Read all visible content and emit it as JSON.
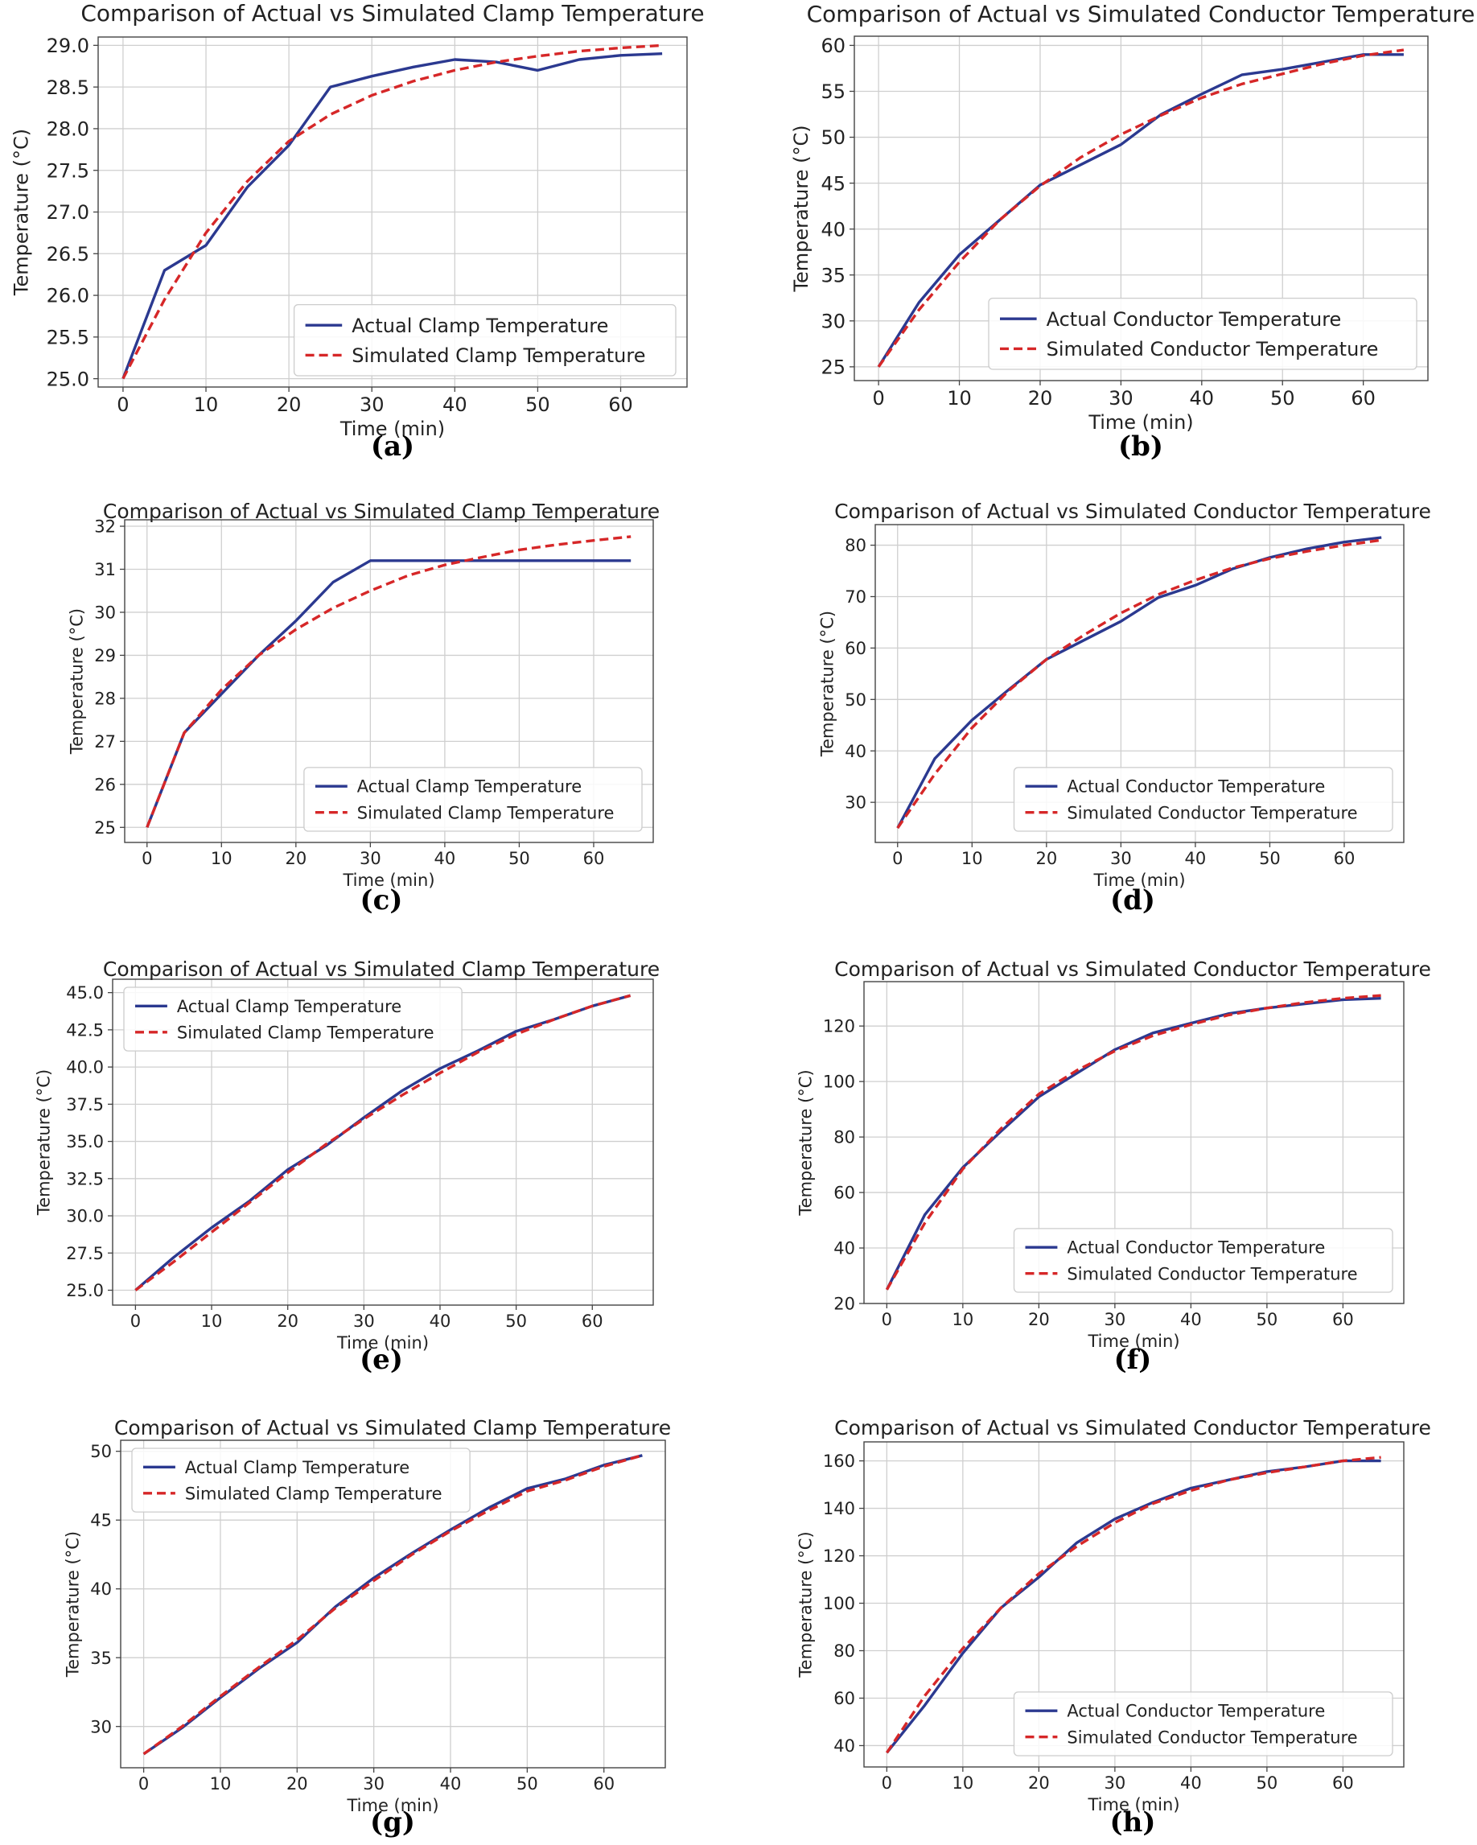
{
  "figure": {
    "captions": [
      "(a)",
      "(b)",
      "(c)",
      "(d)",
      "(e)",
      "(f)",
      "(g)",
      "(h)"
    ]
  },
  "colors": {
    "actual": "#2b3990",
    "simulated": "#d62728",
    "grid": "#cfcfcf",
    "axis": "#444444"
  },
  "chart_data": [
    {
      "type": "line",
      "title": "Comparison of Actual vs Simulated Clamp Temperature",
      "xlabel": "Time (min)",
      "ylabel": "Temperature (°C)",
      "x": [
        0,
        5,
        10,
        15,
        20,
        25,
        30,
        35,
        40,
        45,
        50,
        55,
        60,
        65
      ],
      "xlim": [
        -3,
        68
      ],
      "ylim": [
        24.9,
        29.1
      ],
      "xticks": [
        0,
        10,
        20,
        30,
        40,
        50,
        60
      ],
      "yticks": [
        25.0,
        25.5,
        26.0,
        26.5,
        27.0,
        27.5,
        28.0,
        28.5,
        29.0
      ],
      "ytick_labels": [
        "25.0",
        "25.5",
        "26.0",
        "26.5",
        "27.0",
        "27.5",
        "28.0",
        "28.5",
        "29.0"
      ],
      "legend_position": "lower-right",
      "grid": true,
      "series": [
        {
          "name": "Actual Clamp Temperature",
          "style": "solid",
          "values": [
            25.0,
            26.3,
            26.6,
            27.3,
            27.8,
            28.5,
            28.63,
            28.74,
            28.83,
            28.8,
            28.7,
            28.83,
            28.88,
            28.9
          ]
        },
        {
          "name": "Simulated Clamp Temperature",
          "style": "dashed",
          "values": [
            25.0,
            25.95,
            26.75,
            27.37,
            27.85,
            28.17,
            28.4,
            28.57,
            28.7,
            28.8,
            28.87,
            28.93,
            28.97,
            29.0
          ]
        }
      ]
    },
    {
      "type": "line",
      "title": "Comparison of Actual vs Simulated Conductor Temperature",
      "xlabel": "Time (min)",
      "ylabel": "Temperature (°C)",
      "x": [
        0,
        5,
        10,
        15,
        20,
        25,
        30,
        35,
        40,
        45,
        50,
        55,
        60,
        65
      ],
      "xlim": [
        -3,
        68
      ],
      "ylim": [
        23.5,
        61
      ],
      "xticks": [
        0,
        10,
        20,
        30,
        40,
        50,
        60
      ],
      "yticks": [
        25,
        30,
        35,
        40,
        45,
        50,
        55,
        60
      ],
      "ytick_labels": [
        "25",
        "30",
        "35",
        "40",
        "45",
        "50",
        "55",
        "60"
      ],
      "legend_position": "lower-right",
      "grid": true,
      "series": [
        {
          "name": "Actual Conductor Temperature",
          "style": "solid",
          "values": [
            25.0,
            32.0,
            37.2,
            41.0,
            44.8,
            47.0,
            49.2,
            52.5,
            54.7,
            56.8,
            57.4,
            58.2,
            59.0,
            59.0
          ]
        },
        {
          "name": "Simulated Conductor Temperature",
          "style": "dashed",
          "values": [
            25.0,
            31.2,
            36.4,
            41.0,
            44.7,
            47.8,
            50.3,
            52.4,
            54.3,
            55.8,
            56.9,
            58.0,
            58.9,
            59.5
          ]
        }
      ]
    },
    {
      "type": "line",
      "title": "Comparison of Actual vs Simulated Clamp Temperature",
      "xlabel": "Time (min)",
      "ylabel": "Temperature (°C)",
      "x": [
        0,
        5,
        10,
        15,
        20,
        25,
        30,
        35,
        40,
        45,
        50,
        55,
        60,
        65
      ],
      "xlim": [
        -3,
        68
      ],
      "ylim": [
        24.65,
        32.15
      ],
      "xticks": [
        0,
        10,
        20,
        30,
        40,
        50,
        60
      ],
      "yticks": [
        25,
        26,
        27,
        28,
        29,
        30,
        31,
        32
      ],
      "ytick_labels": [
        "25",
        "26",
        "27",
        "28",
        "29",
        "30",
        "31",
        "32"
      ],
      "legend_position": "lower-right",
      "grid": true,
      "series": [
        {
          "name": "Actual Clamp Temperature",
          "style": "solid",
          "values": [
            25.0,
            27.2,
            28.1,
            29.0,
            29.8,
            30.7,
            31.2,
            31.2,
            31.2,
            31.2,
            31.2,
            31.2,
            31.2,
            31.2
          ]
        },
        {
          "name": "Simulated Clamp Temperature",
          "style": "dashed",
          "values": [
            25.0,
            27.2,
            28.2,
            29.0,
            29.6,
            30.1,
            30.5,
            30.85,
            31.1,
            31.28,
            31.45,
            31.57,
            31.67,
            31.76
          ]
        }
      ]
    },
    {
      "type": "line",
      "title": "Comparison of Actual vs Simulated Conductor Temperature",
      "xlabel": "Time (min)",
      "ylabel": "Temperature (°C)",
      "x": [
        0,
        5,
        10,
        15,
        20,
        25,
        30,
        35,
        40,
        45,
        50,
        55,
        60,
        65
      ],
      "xlim": [
        -3,
        68
      ],
      "ylim": [
        22.2,
        84
      ],
      "xticks": [
        0,
        10,
        20,
        30,
        40,
        50,
        60
      ],
      "yticks": [
        30,
        40,
        50,
        60,
        70,
        80
      ],
      "ytick_labels": [
        "30",
        "40",
        "50",
        "60",
        "70",
        "80"
      ],
      "legend_position": "lower-right",
      "grid": true,
      "series": [
        {
          "name": "Actual Conductor Temperature",
          "style": "solid",
          "values": [
            25.0,
            38.5,
            46.0,
            52.0,
            57.8,
            61.5,
            65.2,
            69.8,
            72.2,
            75.4,
            77.6,
            79.3,
            80.6,
            81.5
          ]
        },
        {
          "name": "Simulated Conductor Temperature",
          "style": "dashed",
          "values": [
            25.0,
            35.5,
            44.5,
            51.8,
            57.8,
            62.5,
            66.8,
            70.4,
            73.2,
            75.6,
            77.4,
            78.8,
            80.0,
            81.0
          ]
        }
      ]
    },
    {
      "type": "line",
      "title": "Comparison of Actual vs Simulated Clamp Temperature",
      "xlabel": "Time (min)",
      "ylabel": "Temperature (°C)",
      "x": [
        0,
        5,
        10,
        15,
        20,
        25,
        30,
        35,
        40,
        45,
        50,
        55,
        60,
        65
      ],
      "xlim": [
        -3,
        68
      ],
      "ylim": [
        24.0,
        45.9
      ],
      "xticks": [
        0,
        10,
        20,
        30,
        40,
        50,
        60
      ],
      "yticks": [
        25.0,
        27.5,
        30.0,
        32.5,
        35.0,
        37.5,
        40.0,
        42.5,
        45.0
      ],
      "ytick_labels": [
        "25.0",
        "27.5",
        "30.0",
        "32.5",
        "35.0",
        "37.5",
        "40.0",
        "42.5",
        "45.0"
      ],
      "legend_position": "upper-left",
      "grid": true,
      "series": [
        {
          "name": "Actual Clamp Temperature",
          "style": "solid",
          "values": [
            25.0,
            27.2,
            29.2,
            31.0,
            33.1,
            34.7,
            36.6,
            38.4,
            39.9,
            41.1,
            42.4,
            43.2,
            44.1,
            44.8
          ]
        },
        {
          "name": "Simulated Clamp Temperature",
          "style": "dashed",
          "values": [
            25.0,
            26.9,
            28.9,
            30.9,
            32.9,
            34.8,
            36.5,
            38.1,
            39.6,
            41.0,
            42.2,
            43.2,
            44.1,
            44.8
          ]
        }
      ]
    },
    {
      "type": "line",
      "title": "Comparison of Actual vs Simulated Conductor Temperature",
      "xlabel": "Time (min)",
      "ylabel": "Temperature (°C)",
      "x": [
        0,
        5,
        10,
        15,
        20,
        25,
        30,
        35,
        40,
        45,
        50,
        55,
        60,
        65
      ],
      "xlim": [
        -3,
        68
      ],
      "ylim": [
        20,
        136
      ],
      "xticks": [
        0,
        10,
        20,
        30,
        40,
        50,
        60
      ],
      "yticks": [
        20,
        40,
        60,
        80,
        100,
        120
      ],
      "ytick_labels": [
        "20",
        "40",
        "60",
        "80",
        "100",
        "120"
      ],
      "legend_position": "lower-right",
      "grid": true,
      "series": [
        {
          "name": "Actual Conductor Temperature",
          "style": "solid",
          "values": [
            25.0,
            52.0,
            69.0,
            82.0,
            94.5,
            103.0,
            111.5,
            117.5,
            121.0,
            124.5,
            126.5,
            128.0,
            129.5,
            130.0
          ]
        },
        {
          "name": "Simulated Conductor Temperature",
          "style": "dashed",
          "values": [
            25.0,
            49.0,
            68.5,
            83.0,
            95.5,
            104.0,
            111.0,
            116.5,
            120.5,
            124.0,
            126.5,
            128.5,
            130.0,
            131.0
          ]
        }
      ]
    },
    {
      "type": "line",
      "title": "Comparison of Actual vs Simulated Clamp Temperature",
      "xlabel": "Time (min)",
      "ylabel": "Temperature (°C)",
      "x": [
        0,
        5,
        10,
        15,
        20,
        25,
        30,
        35,
        40,
        45,
        50,
        55,
        60,
        65
      ],
      "xlim": [
        -3,
        68
      ],
      "ylim": [
        27.0,
        50.8
      ],
      "xticks": [
        0,
        10,
        20,
        30,
        40,
        50,
        60
      ],
      "yticks": [
        30,
        35,
        40,
        45,
        50
      ],
      "ytick_labels": [
        "30",
        "35",
        "40",
        "45",
        "50"
      ],
      "legend_position": "upper-left",
      "grid": true,
      "series": [
        {
          "name": "Actual Clamp Temperature",
          "style": "solid",
          "values": [
            28.0,
            29.9,
            32.1,
            34.2,
            36.1,
            38.7,
            40.8,
            42.6,
            44.3,
            45.9,
            47.3,
            48.0,
            49.0,
            49.7
          ]
        },
        {
          "name": "Simulated Clamp Temperature",
          "style": "dashed",
          "values": [
            28.0,
            30.0,
            32.2,
            34.3,
            36.3,
            38.6,
            40.6,
            42.5,
            44.2,
            45.7,
            47.1,
            47.9,
            48.9,
            49.7
          ]
        }
      ]
    },
    {
      "type": "line",
      "title": "Comparison of Actual vs Simulated Conductor Temperature",
      "xlabel": "Time (min)",
      "ylabel": "Temperature (°C)",
      "x": [
        0,
        5,
        10,
        15,
        20,
        25,
        30,
        35,
        40,
        45,
        50,
        55,
        60,
        65
      ],
      "xlim": [
        -3,
        68
      ],
      "ylim": [
        31,
        168
      ],
      "xticks": [
        0,
        10,
        20,
        30,
        40,
        50,
        60
      ],
      "yticks": [
        40,
        60,
        80,
        100,
        120,
        140,
        160
      ],
      "ytick_labels": [
        "40",
        "60",
        "80",
        "100",
        "120",
        "140",
        "160"
      ],
      "legend_position": "lower-right",
      "grid": true,
      "series": [
        {
          "name": "Actual Conductor Temperature",
          "style": "solid",
          "values": [
            37.0,
            57.0,
            79.0,
            98.0,
            111.0,
            125.5,
            135.5,
            142.5,
            148.5,
            152.0,
            155.5,
            157.5,
            160.0,
            160.0
          ]
        },
        {
          "name": "Simulated Conductor Temperature",
          "style": "dashed",
          "values": [
            37.0,
            61.0,
            81.0,
            98.0,
            112.5,
            124.0,
            134.0,
            142.0,
            147.5,
            152.0,
            155.0,
            157.5,
            160.0,
            161.5
          ]
        }
      ]
    }
  ]
}
